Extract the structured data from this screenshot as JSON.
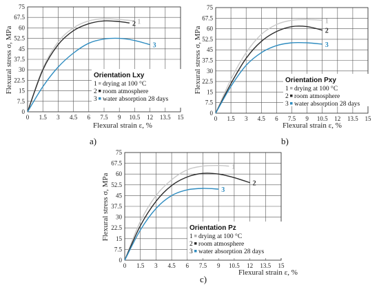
{
  "chart_data": [
    {
      "type": "line",
      "panel": "a)",
      "title": "Orientation Lxy",
      "xlabel": "Flexural strain ε, %",
      "ylabel": "Flexural stress σ, MPa",
      "xlim": [
        0,
        15
      ],
      "ylim": [
        0,
        75
      ],
      "xticks": [
        "0",
        "1.5",
        "3",
        "4.5",
        "6",
        "7.5",
        "9",
        "10.5",
        "12",
        "13.5",
        "15"
      ],
      "yticks": [
        "0",
        "7.5",
        "15",
        "22.5",
        "30",
        "37.5",
        "45",
        "52.5",
        "60",
        "67.5",
        "75"
      ],
      "grid": true,
      "legend_position": "bottom-right",
      "series": [
        {
          "name": "drying at 100 °C",
          "label": "1",
          "color": "#c8c8c8",
          "x": [
            0,
            1.5,
            3,
            4.5,
            6,
            7.5,
            9,
            10.5
          ],
          "y": [
            0,
            31,
            50,
            60,
            65,
            66.5,
            66,
            65
          ]
        },
        {
          "name": "room atmosphere",
          "label": "2",
          "color": "#2a2a2a",
          "x": [
            0,
            1.5,
            3,
            4.5,
            6,
            7.5,
            9,
            10
          ],
          "y": [
            0,
            30,
            48,
            58,
            63,
            65,
            64.5,
            63.5
          ]
        },
        {
          "name": "water absorption 28 days",
          "label": "3",
          "color": "#2e8cc0",
          "x": [
            0,
            1.5,
            3,
            4.5,
            6,
            7.5,
            9,
            10.5,
            12
          ],
          "y": [
            0,
            18,
            32,
            42,
            49,
            52,
            52.5,
            51,
            48
          ]
        }
      ]
    },
    {
      "type": "line",
      "panel": "b)",
      "title": "Orientation Pxy",
      "xlabel": "Flexural strain ε, %",
      "ylabel": "Flexural stress σ, MPa",
      "xlim": [
        0,
        15
      ],
      "ylim": [
        0,
        75
      ],
      "xticks": [
        "0",
        "1.5",
        "3",
        "4.5",
        "6",
        "7.5",
        "9",
        "10.5",
        "12",
        "13.5",
        "15"
      ],
      "yticks": [
        "0",
        "7.5",
        "15",
        "22.5",
        "30",
        "37.5",
        "45",
        "52.5",
        "60",
        "67.5",
        "75"
      ],
      "grid": true,
      "legend_position": "bottom-right",
      "series": [
        {
          "name": "drying at 100 °C",
          "label": "1",
          "color": "#c8c8c8",
          "x": [
            0,
            1.5,
            3,
            4.5,
            6,
            7.5,
            9,
            10.5
          ],
          "y": [
            0,
            24,
            43,
            56,
            63,
            66,
            66.5,
            66
          ]
        },
        {
          "name": "room atmosphere",
          "label": "2",
          "color": "#2a2a2a",
          "x": [
            0,
            1.5,
            3,
            4.5,
            6,
            7.5,
            9,
            10.5
          ],
          "y": [
            0,
            21,
            39,
            51,
            58,
            61.5,
            61.5,
            59
          ]
        },
        {
          "name": "water absorption 28 days",
          "label": "3",
          "color": "#2e8cc0",
          "x": [
            0,
            1.5,
            3,
            4.5,
            6,
            7.5,
            9,
            10.5
          ],
          "y": [
            0,
            19,
            34,
            43,
            48,
            50,
            50,
            49
          ]
        }
      ]
    },
    {
      "type": "line",
      "panel": "c)",
      "title": "Orientation Pz",
      "xlabel": "Flexural strain ε, %",
      "ylabel": "Flexural stress σ, MPa",
      "xlim": [
        0,
        15
      ],
      "ylim": [
        0,
        75
      ],
      "xticks": [
        "0",
        "1.5",
        "3",
        "4.5",
        "6",
        "7.5",
        "9",
        "10.5",
        "12",
        "13.5",
        "15"
      ],
      "yticks": [
        "0",
        "7.5",
        "15",
        "22.5",
        "30",
        "37.5",
        "45",
        "52.5",
        "60",
        "67.5",
        "75"
      ],
      "grid": true,
      "legend_position": "bottom-right",
      "series": [
        {
          "name": "drying at 100 °C",
          "label": "1",
          "color": "#c8c8c8",
          "x": [
            0,
            1.5,
            3,
            4.5,
            6,
            7.5,
            9,
            10
          ],
          "y": [
            0,
            27,
            45,
            56,
            63,
            65.5,
            66,
            65.5
          ]
        },
        {
          "name": "room atmosphere",
          "label": "2",
          "color": "#2a2a2a",
          "x": [
            0,
            1.5,
            3,
            4.5,
            6,
            7.5,
            9,
            10.5,
            12
          ],
          "y": [
            0,
            24,
            41,
            52,
            58,
            60.5,
            60,
            57.5,
            54
          ]
        },
        {
          "name": "water absorption 28 days",
          "label": "3",
          "color": "#2e8cc0",
          "x": [
            0,
            1.5,
            3,
            4.5,
            6,
            7.5,
            9
          ],
          "y": [
            0,
            21,
            36,
            45,
            49,
            50,
            49.5
          ]
        }
      ]
    }
  ]
}
